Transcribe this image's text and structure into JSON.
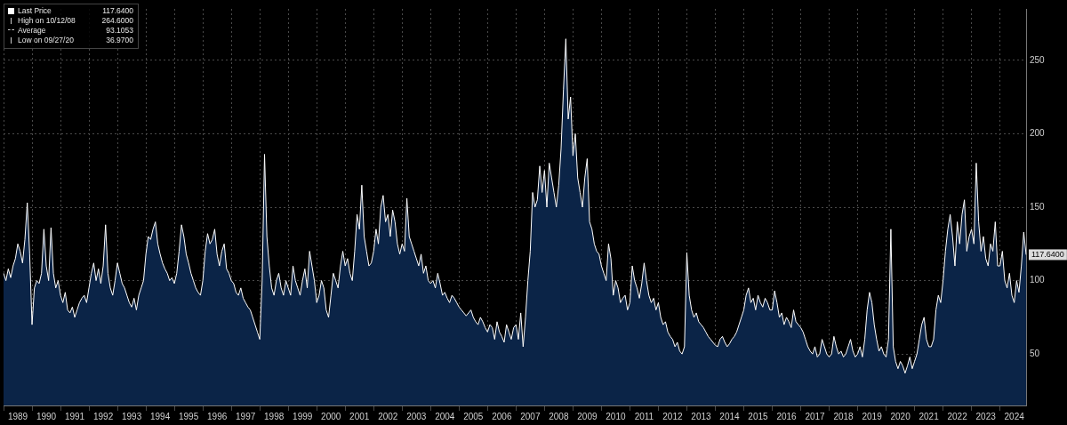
{
  "chart_data": {
    "type": "area",
    "color": "#ffffff",
    "grid": true,
    "ylim": [
      15,
      285
    ],
    "yticks": [
      50,
      100,
      150,
      200,
      250
    ],
    "stats": [
      {
        "text": "Last Price",
        "value": 117.64,
        "label": "117.6400"
      },
      {
        "text": "High on 10/12/08",
        "value": 264.6,
        "label": "264.6000"
      },
      {
        "text": "Average",
        "value": 93.1053,
        "label": "93.1053"
      },
      {
        "text": "Low on 09/27/20",
        "value": 36.97,
        "label": "36.9700"
      }
    ],
    "price_tag": {
      "value": 117.64,
      "label": "117.6400"
    },
    "categories": [
      null,
      null,
      null,
      null,
      null,
      null,
      "1989",
      null,
      null,
      null,
      null,
      null,
      null,
      null,
      null,
      null,
      null,
      null,
      "1990",
      null,
      null,
      null,
      null,
      null,
      null,
      null,
      null,
      null,
      null,
      null,
      "1991",
      null,
      null,
      null,
      null,
      null,
      null,
      null,
      null,
      null,
      null,
      null,
      "1992",
      null,
      null,
      null,
      null,
      null,
      null,
      null,
      null,
      null,
      null,
      null,
      "1993",
      null,
      null,
      null,
      null,
      null,
      null,
      null,
      null,
      null,
      null,
      null,
      "1994",
      null,
      null,
      null,
      null,
      null,
      null,
      null,
      null,
      null,
      null,
      null,
      "1995",
      null,
      null,
      null,
      null,
      null,
      null,
      null,
      null,
      null,
      null,
      null,
      "1996",
      null,
      null,
      null,
      null,
      null,
      null,
      null,
      null,
      null,
      null,
      null,
      "1997",
      null,
      null,
      null,
      null,
      null,
      null,
      null,
      null,
      null,
      null,
      null,
      "1998",
      null,
      null,
      null,
      null,
      null,
      null,
      null,
      null,
      null,
      null,
      null,
      "1999",
      null,
      null,
      null,
      null,
      null,
      null,
      null,
      null,
      null,
      null,
      null,
      "2000",
      null,
      null,
      null,
      null,
      null,
      null,
      null,
      null,
      null,
      null,
      null,
      "2001",
      null,
      null,
      null,
      null,
      null,
      null,
      null,
      null,
      null,
      null,
      null,
      "2002",
      null,
      null,
      null,
      null,
      null,
      null,
      null,
      null,
      null,
      null,
      null,
      "2003",
      null,
      null,
      null,
      null,
      null,
      null,
      null,
      null,
      null,
      null,
      null,
      "2004",
      null,
      null,
      null,
      null,
      null,
      null,
      null,
      null,
      null,
      null,
      null,
      "2005",
      null,
      null,
      null,
      null,
      null,
      null,
      null,
      null,
      null,
      null,
      null,
      "2006",
      null,
      null,
      null,
      null,
      null,
      null,
      null,
      null,
      null,
      null,
      null,
      "2007",
      null,
      null,
      null,
      null,
      null,
      null,
      null,
      null,
      null,
      null,
      null,
      "2008",
      null,
      null,
      null,
      null,
      null,
      null,
      null,
      null,
      null,
      null,
      null,
      "2009",
      null,
      null,
      null,
      null,
      null,
      null,
      null,
      null,
      null,
      null,
      null,
      "2010",
      null,
      null,
      null,
      null,
      null,
      null,
      null,
      null,
      null,
      null,
      null,
      "2011",
      null,
      null,
      null,
      null,
      null,
      null,
      null,
      null,
      null,
      null,
      null,
      "2012",
      null,
      null,
      null,
      null,
      null,
      null,
      null,
      null,
      null,
      null,
      null,
      "2013",
      null,
      null,
      null,
      null,
      null,
      null,
      null,
      null,
      null,
      null,
      null,
      "2014",
      null,
      null,
      null,
      null,
      null,
      null,
      null,
      null,
      null,
      null,
      null,
      "2015",
      null,
      null,
      null,
      null,
      null,
      null,
      null,
      null,
      null,
      null,
      null,
      "2016",
      null,
      null,
      null,
      null,
      null,
      null,
      null,
      null,
      null,
      null,
      null,
      "2017",
      null,
      null,
      null,
      null,
      null,
      null,
      null,
      null,
      null,
      null,
      null,
      "2018",
      null,
      null,
      null,
      null,
      null,
      null,
      null,
      null,
      null,
      null,
      null,
      "2019",
      null,
      null,
      null,
      null,
      null,
      null,
      null,
      null,
      null,
      null,
      null,
      "2020",
      null,
      null,
      null,
      null,
      null,
      null,
      null,
      null,
      null,
      null,
      null,
      "2021",
      null,
      null,
      null,
      null,
      null,
      null,
      null,
      null,
      null,
      null,
      null,
      "2022",
      null,
      null,
      null,
      null,
      null,
      null,
      null,
      null,
      null,
      null,
      null,
      "2023",
      null,
      null,
      null,
      null,
      null,
      null,
      null,
      null,
      null,
      null,
      null,
      "2024",
      null,
      null,
      null,
      null,
      null
    ],
    "values": [
      105,
      100,
      108,
      102,
      110,
      115,
      125,
      120,
      112,
      128,
      153,
      118,
      70,
      95,
      100,
      98,
      105,
      135,
      110,
      100,
      136,
      105,
      95,
      100,
      90,
      85,
      92,
      80,
      78,
      82,
      75,
      80,
      85,
      88,
      90,
      85,
      95,
      105,
      112,
      100,
      108,
      98,
      110,
      138,
      105,
      95,
      90,
      100,
      112,
      105,
      98,
      95,
      90,
      85,
      82,
      88,
      80,
      90,
      95,
      100,
      118,
      130,
      128,
      135,
      140,
      125,
      118,
      112,
      108,
      105,
      100,
      102,
      98,
      105,
      120,
      138,
      130,
      118,
      112,
      105,
      100,
      95,
      92,
      90,
      100,
      120,
      132,
      125,
      128,
      135,
      118,
      110,
      120,
      125,
      108,
      105,
      100,
      98,
      92,
      90,
      95,
      88,
      85,
      82,
      80,
      75,
      70,
      65,
      60,
      100,
      186,
      130,
      110,
      95,
      90,
      100,
      105,
      95,
      90,
      100,
      95,
      90,
      110,
      100,
      95,
      90,
      100,
      108,
      95,
      120,
      110,
      100,
      85,
      90,
      100,
      95,
      80,
      75,
      90,
      105,
      100,
      95,
      110,
      120,
      110,
      115,
      105,
      100,
      120,
      145,
      135,
      165,
      130,
      120,
      110,
      112,
      120,
      135,
      125,
      150,
      158,
      140,
      145,
      130,
      148,
      140,
      125,
      118,
      125,
      120,
      156,
      130,
      125,
      120,
      115,
      110,
      118,
      105,
      110,
      100,
      98,
      100,
      95,
      105,
      98,
      90,
      92,
      88,
      85,
      90,
      88,
      85,
      82,
      80,
      78,
      76,
      78,
      80,
      75,
      72,
      70,
      75,
      72,
      68,
      65,
      70,
      68,
      60,
      72,
      65,
      62,
      58,
      70,
      65,
      60,
      68,
      70,
      60,
      78,
      55,
      75,
      100,
      120,
      160,
      150,
      155,
      178,
      160,
      175,
      150,
      180,
      170,
      160,
      150,
      165,
      190,
      230,
      264.6,
      210,
      225,
      185,
      200,
      170,
      160,
      150,
      170,
      183,
      140,
      135,
      125,
      120,
      118,
      110,
      105,
      100,
      125,
      115,
      90,
      100,
      95,
      85,
      88,
      90,
      80,
      85,
      110,
      100,
      95,
      88,
      98,
      112,
      100,
      90,
      85,
      88,
      80,
      85,
      75,
      70,
      72,
      65,
      62,
      60,
      55,
      58,
      52,
      50,
      55,
      119,
      90,
      80,
      75,
      78,
      72,
      70,
      68,
      65,
      62,
      60,
      58,
      56,
      55,
      60,
      62,
      58,
      55,
      57,
      60,
      62,
      65,
      70,
      75,
      80,
      90,
      95,
      85,
      88,
      80,
      90,
      85,
      82,
      88,
      85,
      80,
      80,
      93,
      85,
      75,
      78,
      70,
      75,
      72,
      68,
      80,
      72,
      70,
      68,
      65,
      60,
      55,
      52,
      50,
      55,
      48,
      50,
      60,
      55,
      50,
      48,
      50,
      62,
      55,
      50,
      52,
      48,
      50,
      55,
      60,
      52,
      48,
      50,
      55,
      48,
      60,
      80,
      92,
      85,
      70,
      60,
      52,
      55,
      50,
      48,
      60,
      135,
      55,
      45,
      40,
      45,
      42,
      36.97,
      42,
      48,
      40,
      45,
      50,
      60,
      70,
      75,
      60,
      55,
      55,
      60,
      80,
      90,
      85,
      100,
      120,
      135,
      145,
      130,
      110,
      140,
      125,
      145,
      155,
      120,
      130,
      135,
      125,
      180,
      140,
      120,
      130,
      115,
      110,
      125,
      120,
      140,
      110,
      110,
      120,
      100,
      95,
      105,
      90,
      85,
      100,
      92,
      110,
      133,
      117.64
    ]
  }
}
